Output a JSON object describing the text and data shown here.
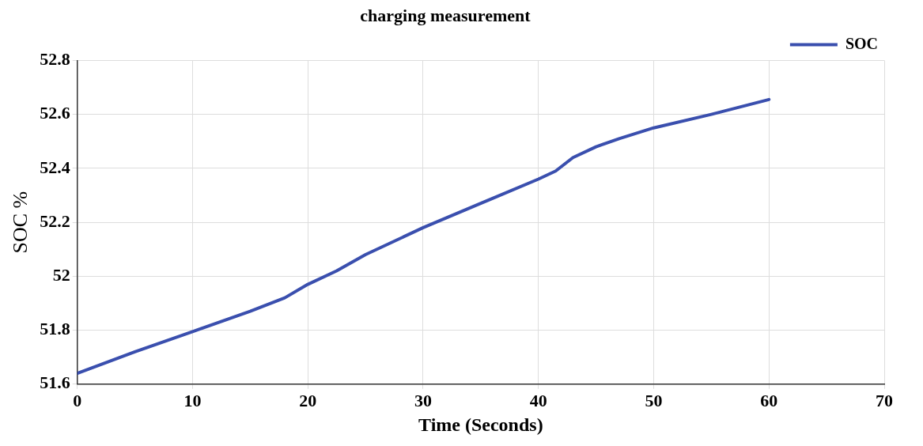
{
  "chart_data": {
    "type": "line",
    "title": "charging measurement",
    "xlabel": "Time (Seconds)",
    "ylabel": "SOC %",
    "x": [
      0,
      5,
      10,
      15,
      18,
      20,
      22.5,
      25,
      30,
      35,
      40,
      41.5,
      43,
      45,
      47,
      50,
      55,
      60
    ],
    "series": [
      {
        "name": "SOC",
        "color": "#3a4fae",
        "values": [
          51.64,
          51.72,
          51.795,
          51.87,
          51.92,
          51.97,
          52.02,
          52.08,
          52.18,
          52.27,
          52.36,
          52.39,
          52.44,
          52.48,
          52.51,
          52.55,
          52.6,
          52.655
        ]
      }
    ],
    "xlim": [
      0,
      70
    ],
    "xticks": [
      0,
      10,
      20,
      30,
      40,
      50,
      60,
      70
    ],
    "ylim": [
      51.6,
      52.8
    ],
    "yticks": [
      51.6,
      51.8,
      52,
      52.2,
      52.4,
      52.6,
      52.8
    ],
    "grid": true,
    "legend": "top right",
    "marker": "none",
    "line_style": "solid"
  }
}
